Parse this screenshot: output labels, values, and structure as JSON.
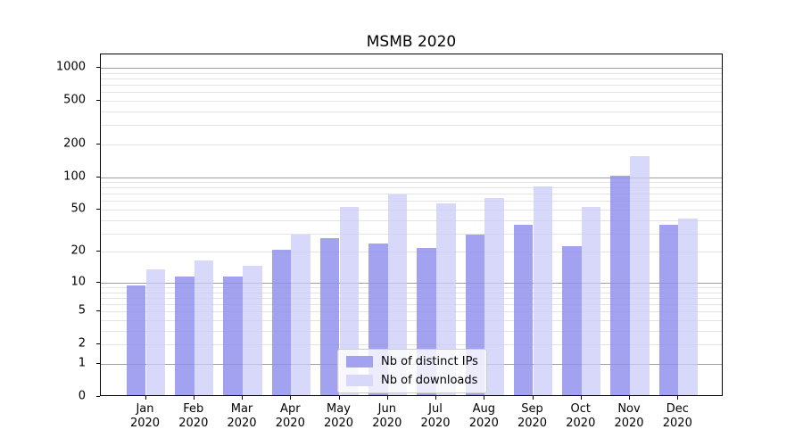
{
  "chart_data": {
    "type": "bar",
    "title": "MSMB 2020",
    "months": [
      "Jan",
      "Feb",
      "Mar",
      "Apr",
      "May",
      "Jun",
      "Jul",
      "Aug",
      "Sep",
      "Oct",
      "Nov",
      "Dec"
    ],
    "year": "2020",
    "series": [
      {
        "name": "Nb of distinct IPs",
        "color": "#a2a2f0",
        "values": [
          9,
          11,
          11,
          20,
          26,
          23,
          21,
          28,
          35,
          22,
          100,
          35
        ]
      },
      {
        "name": "Nb of downloads",
        "color": "#d8d8fa",
        "values": [
          13,
          16,
          14,
          28,
          51,
          67,
          55,
          62,
          79,
          51,
          150,
          40
        ]
      }
    ],
    "yticks": [
      0,
      1,
      2,
      5,
      10,
      20,
      50,
      100,
      200,
      500,
      1000
    ],
    "scale": "log1p",
    "ylim": [
      0,
      1320
    ],
    "grid": true,
    "legend_position": "lower-center",
    "xlabel": "",
    "ylabel": ""
  }
}
